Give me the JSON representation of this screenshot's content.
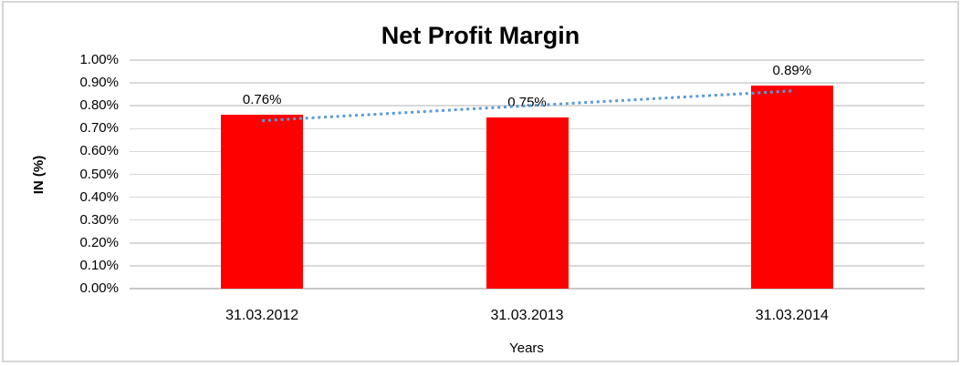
{
  "chart_data": {
    "type": "bar",
    "title": "Net Profit Margin",
    "xlabel": "Years",
    "ylabel": "IN (%)",
    "categories": [
      "31.03.2012",
      "31.03.2013",
      "31.03.2014"
    ],
    "series": [
      {
        "name": "Net Profit Margin",
        "values": [
          0.76,
          0.75,
          0.89
        ]
      }
    ],
    "data_labels": [
      "0.76%",
      "0.75%",
      "0.89%"
    ],
    "ylim": [
      0.0,
      1.0
    ],
    "ytick_step": 0.1,
    "ytick_labels": [
      "0.00%",
      "0.10%",
      "0.20%",
      "0.30%",
      "0.40%",
      "0.50%",
      "0.60%",
      "0.70%",
      "0.80%",
      "0.90%",
      "1.00%"
    ],
    "grid": true,
    "legend": "none",
    "bar_color": "#ff0000",
    "trendline": {
      "type": "linear",
      "style": "dotted",
      "color": "#5b9bd5",
      "values": [
        0.735,
        0.8,
        0.865
      ]
    }
  }
}
